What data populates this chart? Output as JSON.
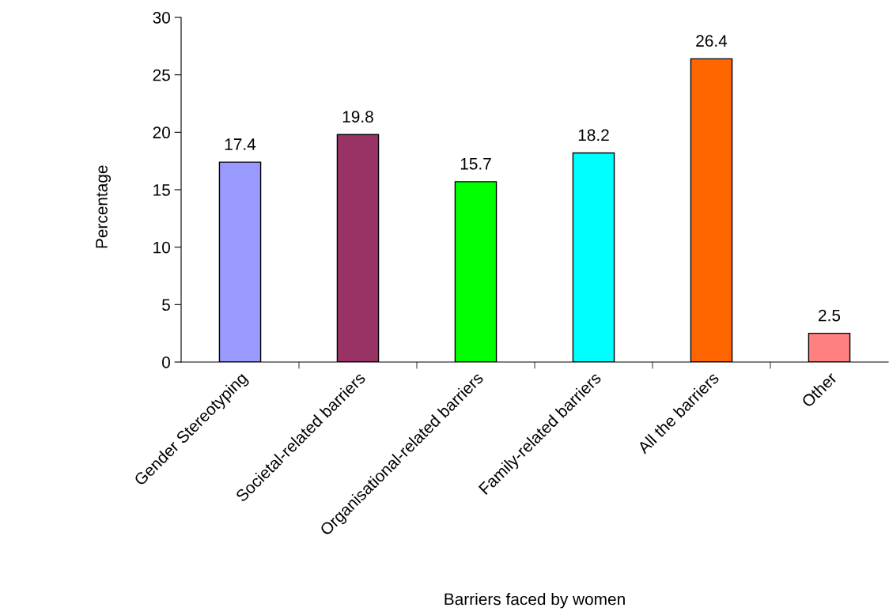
{
  "chart_data": {
    "type": "bar",
    "xlabel": "Barriers faced by women",
    "ylabel": "Percentage",
    "categories": [
      "Gender Stereotyping",
      "Societal-related barriers",
      "Organisational-related barriers",
      "Family-related barriers",
      "All the barriers",
      "Other"
    ],
    "values": [
      17.4,
      19.8,
      15.7,
      18.2,
      26.4,
      2.5
    ],
    "colors": [
      "#9999ff",
      "#993366",
      "#00ff00",
      "#00ffff",
      "#ff6600",
      "#ff8080"
    ],
    "ylim": [
      0,
      30
    ],
    "yticks": [
      0,
      5,
      10,
      15,
      20,
      25,
      30
    ],
    "data_labels": true,
    "grid": false,
    "legend": false
  }
}
